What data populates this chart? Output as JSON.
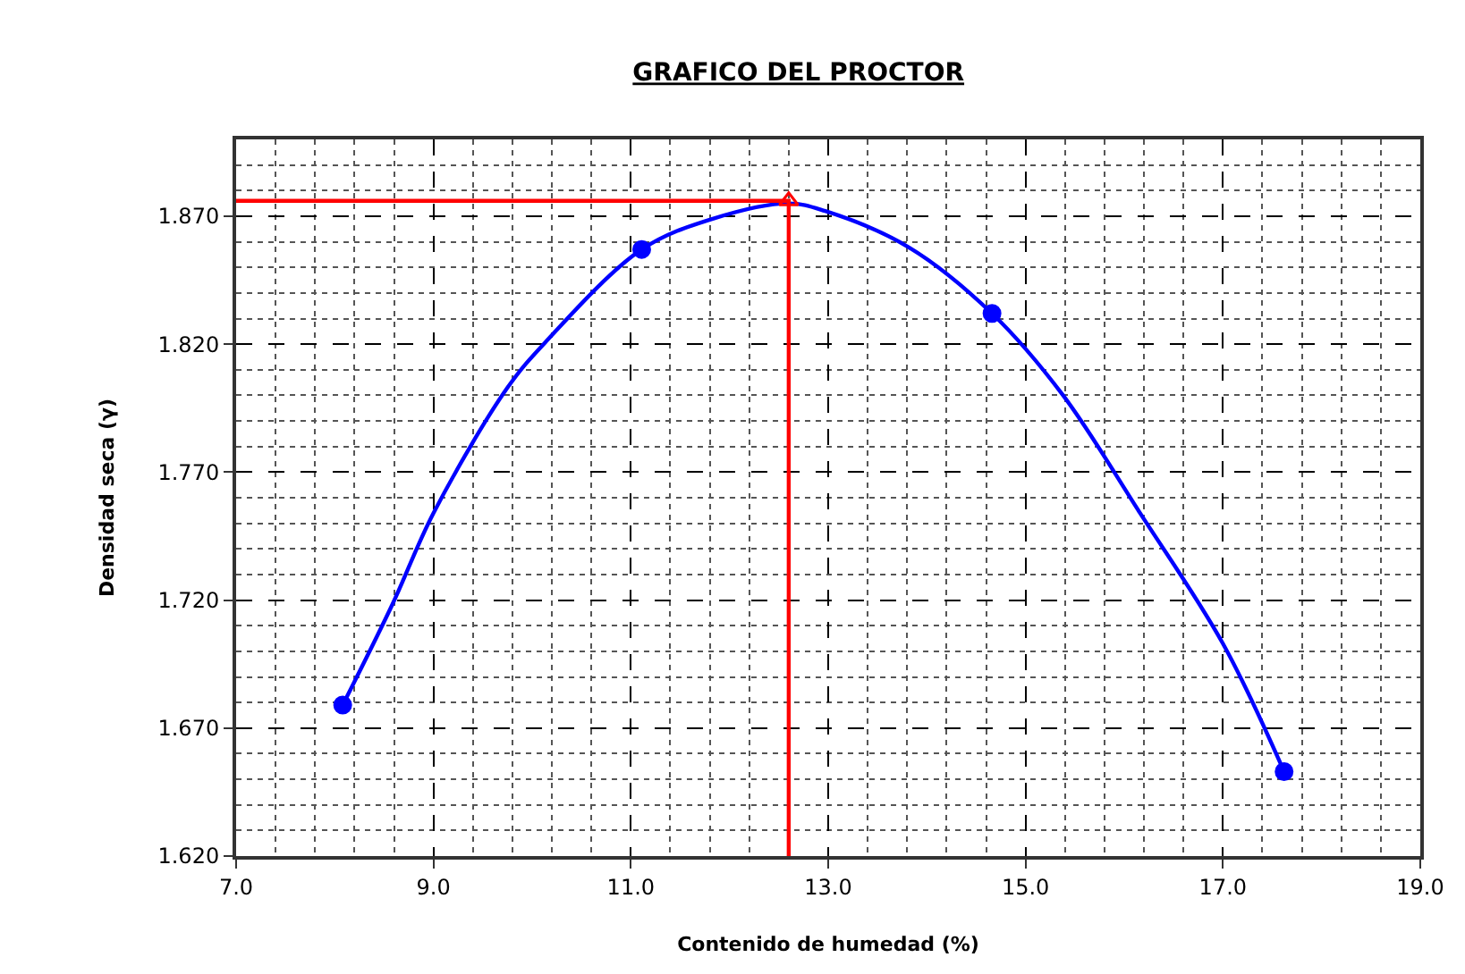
{
  "chart_data": {
    "type": "scatter",
    "title": "GRAFICO DEL PROCTOR",
    "xlabel": "Contenido de humedad (%)",
    "ylabel": "Densidad seca (γ)",
    "xlim": [
      7,
      19
    ],
    "ylim": [
      1.62,
      1.9
    ],
    "xticks": [
      {
        "value": 7,
        "label": "7.0"
      },
      {
        "value": 7.4,
        "label": null
      },
      {
        "value": 7.8,
        "label": null
      },
      {
        "value": 8.2,
        "label": null
      },
      {
        "value": 8.6,
        "label": null
      },
      {
        "value": 9,
        "label": "9.0"
      },
      {
        "value": 9.4,
        "label": null
      },
      {
        "value": 9.8,
        "label": null
      },
      {
        "value": 10.2,
        "label": null
      },
      {
        "value": 10.6,
        "label": null
      },
      {
        "value": 11,
        "label": "11.0"
      },
      {
        "value": 11.4,
        "label": null
      },
      {
        "value": 11.8,
        "label": null
      },
      {
        "value": 12.2,
        "label": null
      },
      {
        "value": 12.6,
        "label": null
      },
      {
        "value": 13,
        "label": "13.0"
      },
      {
        "value": 13.4,
        "label": null
      },
      {
        "value": 13.8,
        "label": null
      },
      {
        "value": 14.2,
        "label": null
      },
      {
        "value": 14.6,
        "label": null
      },
      {
        "value": 15,
        "label": "15.0"
      },
      {
        "value": 15.4,
        "label": null
      },
      {
        "value": 15.8,
        "label": null
      },
      {
        "value": 16.2,
        "label": null
      },
      {
        "value": 16.6,
        "label": null
      },
      {
        "value": 17,
        "label": "17.0"
      },
      {
        "value": 17.4,
        "label": null
      },
      {
        "value": 17.8,
        "label": null
      },
      {
        "value": 18.2,
        "label": null
      },
      {
        "value": 18.6,
        "label": null
      },
      {
        "value": 19,
        "label": "19.0"
      }
    ],
    "yticks": [
      {
        "value": 1.62,
        "label": "1.620"
      },
      {
        "value": 1.63,
        "label": null
      },
      {
        "value": 1.64,
        "label": null
      },
      {
        "value": 1.65,
        "label": null
      },
      {
        "value": 1.66,
        "label": null
      },
      {
        "value": 1.67,
        "label": "1.670"
      },
      {
        "value": 1.68,
        "label": null
      },
      {
        "value": 1.69,
        "label": null
      },
      {
        "value": 1.7,
        "label": null
      },
      {
        "value": 1.71,
        "label": null
      },
      {
        "value": 1.72,
        "label": "1.720"
      },
      {
        "value": 1.73,
        "label": null
      },
      {
        "value": 1.74,
        "label": null
      },
      {
        "value": 1.75,
        "label": null
      },
      {
        "value": 1.76,
        "label": null
      },
      {
        "value": 1.77,
        "label": "1.770"
      },
      {
        "value": 1.78,
        "label": null
      },
      {
        "value": 1.79,
        "label": null
      },
      {
        "value": 1.8,
        "label": null
      },
      {
        "value": 1.81,
        "label": null
      },
      {
        "value": 1.82,
        "label": "1.820"
      },
      {
        "value": 1.83,
        "label": null
      },
      {
        "value": 1.84,
        "label": null
      },
      {
        "value": 1.85,
        "label": null
      },
      {
        "value": 1.86,
        "label": null
      },
      {
        "value": 1.87,
        "label": "1.870"
      },
      {
        "value": 1.88,
        "label": null
      },
      {
        "value": 1.89,
        "label": null
      },
      {
        "value": 1.9,
        "label": null
      }
    ],
    "grid": true,
    "line_style": "solid",
    "series": [
      {
        "type": "line",
        "color": "#0000ff",
        "marker": "none",
        "x": [
          8.08,
          8.58,
          9.0,
          9.75,
          10.14,
          11.11,
          11.83,
          12.6,
          12.97,
          13.81,
          14.66,
          15.38,
          16.16,
          17.0,
          17.62
        ],
        "values": [
          1.679,
          1.718,
          1.754,
          1.803,
          1.821,
          1.857,
          1.869,
          1.875,
          1.872,
          1.858,
          1.832,
          1.8,
          1.754,
          1.703,
          1.653
        ]
      },
      {
        "color": "#0000ff",
        "marker": "circle",
        "x": [
          8.08,
          11.11,
          14.66,
          17.62
        ],
        "values": [
          1.679,
          1.857,
          1.832,
          1.653
        ]
      },
      {
        "type": "line",
        "color": "#ff0000",
        "marker": "none",
        "x": [
          7.0,
          12.6,
          12.6
        ],
        "values": [
          1.876,
          1.876,
          1.62
        ]
      },
      {
        "color": "#ff0000",
        "marker": "triangle",
        "x": [
          12.6
        ],
        "values": [
          1.876
        ]
      }
    ]
  }
}
